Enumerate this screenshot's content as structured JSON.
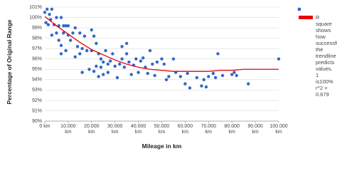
{
  "chart_data": {
    "type": "scatter",
    "x_label": "Mileage in km",
    "y_label": "Percentage of Original Range",
    "xlim": [
      0,
      100000
    ],
    "ylim": [
      90,
      101
    ],
    "grid": true,
    "xticks": [
      {
        "value": 0,
        "label": "0 km"
      },
      {
        "value": 10000,
        "label": "10.000 km"
      },
      {
        "value": 20000,
        "label": "20.000 km"
      },
      {
        "value": 30000,
        "label": "30.000 km"
      },
      {
        "value": 40000,
        "label": "40.000 km"
      },
      {
        "value": 50000,
        "label": "50.000 km"
      },
      {
        "value": 60000,
        "label": "60.000 km"
      },
      {
        "value": 70000,
        "label": "70.000 km"
      },
      {
        "value": 80000,
        "label": "80.000 km"
      },
      {
        "value": 90000,
        "label": "90.000 km"
      },
      {
        "value": 100000,
        "label": "100.000 km"
      }
    ],
    "yticks": [
      {
        "value": 90,
        "label": "90%"
      },
      {
        "value": 91,
        "label": "91%"
      },
      {
        "value": 92,
        "label": "92%"
      },
      {
        "value": 93,
        "label": "93%"
      },
      {
        "value": 94,
        "label": "94%"
      },
      {
        "value": 95,
        "label": "95%"
      },
      {
        "value": 96,
        "label": "96%"
      },
      {
        "value": 97,
        "label": "97%"
      },
      {
        "value": 98,
        "label": "98%"
      },
      {
        "value": 99,
        "label": "99%"
      },
      {
        "value": 100,
        "label": "100%"
      },
      {
        "value": 101,
        "label": "101%"
      }
    ],
    "series": [
      {
        "color": "#3366cc",
        "x": [
          0,
          1000,
          2000,
          3000,
          500,
          1500,
          2500,
          4000,
          5000,
          6000,
          7000,
          8000,
          9000,
          10000,
          3000,
          5000,
          6000,
          7000,
          8000,
          10000,
          12000,
          11000,
          13000,
          15000,
          17000,
          20000,
          21000,
          14000,
          16000,
          7000,
          9000,
          13000,
          15000,
          18000,
          20000,
          22000,
          23000,
          24000,
          25000,
          26000,
          27000,
          16000,
          19000,
          21000,
          22000,
          23000,
          24000,
          25000,
          27000,
          28000,
          29000,
          30000,
          31000,
          32000,
          33000,
          34000,
          35000,
          36000,
          37000,
          38000,
          39000,
          40000,
          41000,
          42000,
          43000,
          44000,
          45000,
          46000,
          47000,
          48000,
          50000,
          51000,
          52000,
          53000,
          55000,
          56000,
          58000,
          60000,
          61000,
          62000,
          65000,
          67000,
          68000,
          69000,
          70000,
          72000,
          73000,
          74000,
          76000,
          80000,
          81000,
          82000,
          87000,
          100000,
          35000,
          33000
        ],
        "values": [
          100.5,
          100.8,
          100.3,
          100.8,
          99.5,
          99.3,
          99.8,
          99.3,
          100,
          99.2,
          100,
          99.2,
          99.2,
          99.2,
          98.3,
          98.5,
          97.8,
          97.3,
          98.5,
          98.3,
          98.5,
          97.8,
          99,
          98.5,
          98.2,
          98.8,
          98.2,
          97.2,
          97,
          96.5,
          96.8,
          96.2,
          96.5,
          96.8,
          96.8,
          97.5,
          96.5,
          96,
          95.7,
          96.8,
          95.5,
          94.7,
          95,
          94.8,
          95.3,
          94.3,
          95.2,
          94.5,
          94.7,
          95.8,
          96.5,
          95.3,
          94.2,
          95.5,
          96,
          95.2,
          96.5,
          95.7,
          94.5,
          95.4,
          96,
          94.7,
          95.8,
          96.1,
          95.2,
          94.6,
          96.8,
          95.5,
          94.4,
          95.7,
          96,
          95.5,
          94,
          94.3,
          96,
          94.7,
          94.3,
          93.6,
          94.6,
          93.2,
          94.2,
          93.4,
          94,
          93.3,
          94.3,
          94.6,
          94.2,
          96.5,
          94.4,
          94.5,
          94.7,
          94.4,
          93.6,
          96,
          97.5,
          97.2
        ]
      },
      {
        "name": "R square shows how successful the trendline predicts values. 1 is100% r^2 = 0.679",
        "color": "#e8000b",
        "mode": "line",
        "x": [
          0,
          5000,
          10000,
          15000,
          20000,
          25000,
          30000,
          35000,
          40000,
          45000,
          50000,
          55000,
          60000,
          65000,
          70000,
          75000,
          80000,
          85000,
          90000,
          95000,
          100000
        ],
        "values": [
          100.1,
          99.2,
          98.4,
          97.6,
          96.9,
          96.4,
          95.9,
          95.5,
          95.2,
          95,
          94.9,
          94.8,
          94.8,
          94.8,
          94.8,
          94.9,
          94.9,
          95,
          95,
          95,
          95
        ]
      }
    ]
  }
}
